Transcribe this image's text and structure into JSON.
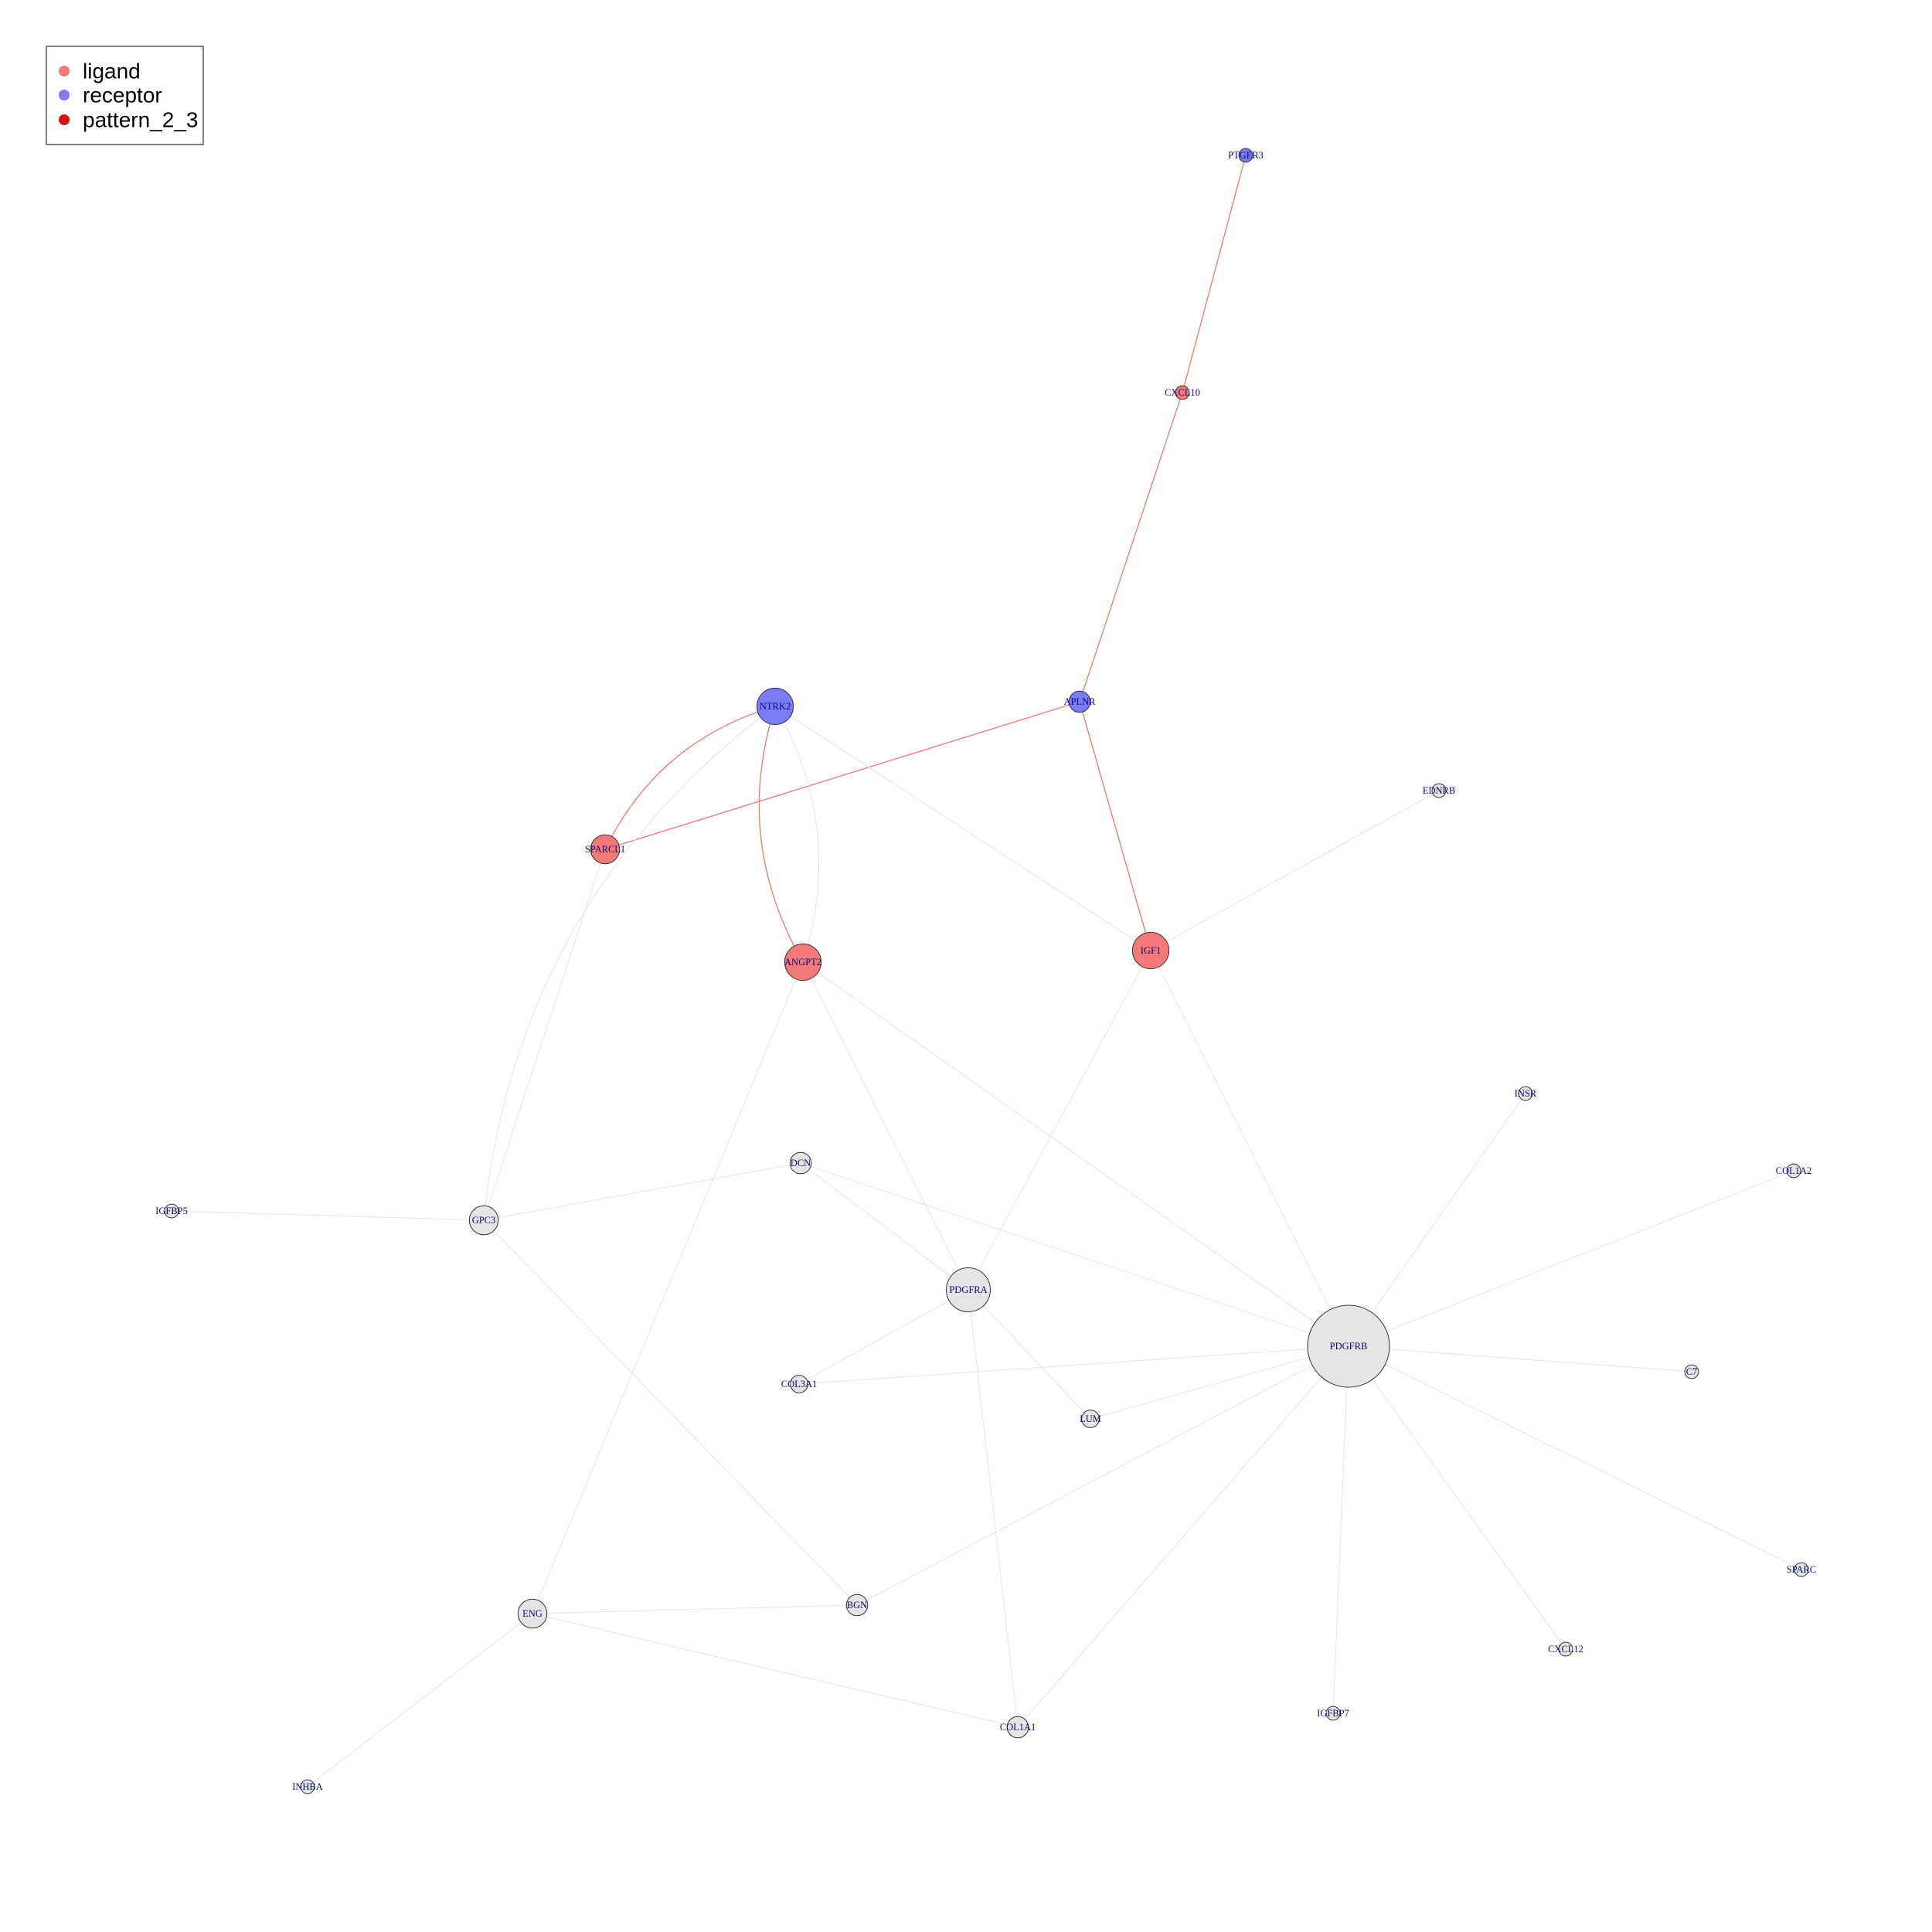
{
  "legend": {
    "items": [
      {
        "label": "ligand",
        "color": "#f47a7a"
      },
      {
        "label": "receptor",
        "color": "#7b7bf4"
      },
      {
        "label": "pattern_2_3",
        "color": "#d41414"
      }
    ]
  },
  "colors": {
    "ligand": "#f47a7a",
    "receptor": "#7b7bf4",
    "other": "#e5e5e5",
    "edge_pattern": "#f07d7d",
    "edge_other": "#e6e6e6"
  },
  "nodes": [
    {
      "id": "PTGER3",
      "label": "PTGER3",
      "type": "receptor",
      "weight": 1
    },
    {
      "id": "CXCL10",
      "label": "CXCL10",
      "type": "ligand",
      "weight": 1
    },
    {
      "id": "NTRK2",
      "label": "NTRK2",
      "type": "receptor",
      "weight": 4
    },
    {
      "id": "APLNR",
      "label": "APLNR",
      "type": "receptor",
      "weight": 2
    },
    {
      "id": "EDNRB",
      "label": "EDNRB",
      "type": "other",
      "weight": 1
    },
    {
      "id": "SPARCL1",
      "label": "SPARCL1",
      "type": "ligand",
      "weight": 3
    },
    {
      "id": "ANGPT2",
      "label": "ANGPT2",
      "type": "ligand",
      "weight": 4
    },
    {
      "id": "IGF1",
      "label": "IGF1",
      "type": "ligand",
      "weight": 4
    },
    {
      "id": "INSR",
      "label": "INSR",
      "type": "other",
      "weight": 1
    },
    {
      "id": "COL1A2",
      "label": "COL1A2",
      "type": "other",
      "weight": 1
    },
    {
      "id": "DCN",
      "label": "DCN",
      "type": "other",
      "weight": 2
    },
    {
      "id": "IGFBP5",
      "label": "IGFBP5",
      "type": "other",
      "weight": 1
    },
    {
      "id": "GPC3",
      "label": "GPC3",
      "type": "other",
      "weight": 3
    },
    {
      "id": "PDGFRA",
      "label": "PDGFRA",
      "type": "other",
      "weight": 5
    },
    {
      "id": "PDGFRB",
      "label": "PDGFRB",
      "type": "other",
      "weight": 10
    },
    {
      "id": "C7",
      "label": "C7",
      "type": "other",
      "weight": 1
    },
    {
      "id": "COL3A1",
      "label": "COL3A1",
      "type": "other",
      "weight": 1.5
    },
    {
      "id": "LUM",
      "label": "LUM",
      "type": "other",
      "weight": 1.5
    },
    {
      "id": "SPARC",
      "label": "SPARC",
      "type": "other",
      "weight": 1
    },
    {
      "id": "ENG",
      "label": "ENG",
      "type": "other",
      "weight": 3
    },
    {
      "id": "BGN",
      "label": "BGN",
      "type": "other",
      "weight": 2
    },
    {
      "id": "CXCL12",
      "label": "CXCL12",
      "type": "other",
      "weight": 1
    },
    {
      "id": "IGFBP7",
      "label": "IGFBP7",
      "type": "other",
      "weight": 1
    },
    {
      "id": "COL1A1",
      "label": "COL1A1",
      "type": "other",
      "weight": 2
    },
    {
      "id": "INHBA",
      "label": "INHBA",
      "type": "other",
      "weight": 1
    }
  ],
  "edges": [
    {
      "source": "PTGER3",
      "target": "CXCL10",
      "pattern": true
    },
    {
      "source": "CXCL10",
      "target": "APLNR",
      "pattern": true
    },
    {
      "source": "APLNR",
      "target": "SPARCL1",
      "pattern": true
    },
    {
      "source": "APLNR",
      "target": "IGF1",
      "pattern": true
    },
    {
      "source": "NTRK2",
      "target": "SPARCL1",
      "pattern": true,
      "curve": true
    },
    {
      "source": "NTRK2",
      "target": "ANGPT2",
      "pattern": true,
      "curve": true
    },
    {
      "source": "NTRK2",
      "target": "IGF1",
      "pattern": false
    },
    {
      "source": "NTRK2",
      "target": "GPC3",
      "pattern": false,
      "curve": true
    },
    {
      "source": "NTRK2",
      "target": "ANGPT2",
      "pattern": false,
      "curve": true,
      "flip": true
    },
    {
      "source": "SPARCL1",
      "target": "GPC3",
      "pattern": false
    },
    {
      "source": "ANGPT2",
      "target": "PDGFRA",
      "pattern": false
    },
    {
      "source": "ANGPT2",
      "target": "PDGFRB",
      "pattern": false
    },
    {
      "source": "ANGPT2",
      "target": "ENG",
      "pattern": false
    },
    {
      "source": "IGF1",
      "target": "EDNRB",
      "pattern": false
    },
    {
      "source": "IGF1",
      "target": "PDGFRA",
      "pattern": false
    },
    {
      "source": "IGF1",
      "target": "PDGFRB",
      "pattern": false
    },
    {
      "source": "INSR",
      "target": "PDGFRB",
      "pattern": false
    },
    {
      "source": "COL1A2",
      "target": "PDGFRB",
      "pattern": false
    },
    {
      "source": "DCN",
      "target": "GPC3",
      "pattern": false
    },
    {
      "source": "DCN",
      "target": "PDGFRA",
      "pattern": false
    },
    {
      "source": "DCN",
      "target": "PDGFRB",
      "pattern": false
    },
    {
      "source": "IGFBP5",
      "target": "GPC3",
      "pattern": false
    },
    {
      "source": "GPC3",
      "target": "BGN",
      "pattern": false
    },
    {
      "source": "PDGFRA",
      "target": "COL3A1",
      "pattern": false
    },
    {
      "source": "PDGFRA",
      "target": "LUM",
      "pattern": false
    },
    {
      "source": "PDGFRA",
      "target": "COL1A1",
      "pattern": false
    },
    {
      "source": "PDGFRB",
      "target": "C7",
      "pattern": false
    },
    {
      "source": "PDGFRB",
      "target": "COL3A1",
      "pattern": false
    },
    {
      "source": "PDGFRB",
      "target": "LUM",
      "pattern": false
    },
    {
      "source": "PDGFRB",
      "target": "SPARC",
      "pattern": false
    },
    {
      "source": "PDGFRB",
      "target": "BGN",
      "pattern": false
    },
    {
      "source": "PDGFRB",
      "target": "CXCL12",
      "pattern": false
    },
    {
      "source": "PDGFRB",
      "target": "IGFBP7",
      "pattern": false
    },
    {
      "source": "PDGFRB",
      "target": "COL1A1",
      "pattern": false
    },
    {
      "source": "ENG",
      "target": "BGN",
      "pattern": false
    },
    {
      "source": "ENG",
      "target": "COL1A1",
      "pattern": false
    },
    {
      "source": "ENG",
      "target": "INHBA",
      "pattern": false
    }
  ]
}
